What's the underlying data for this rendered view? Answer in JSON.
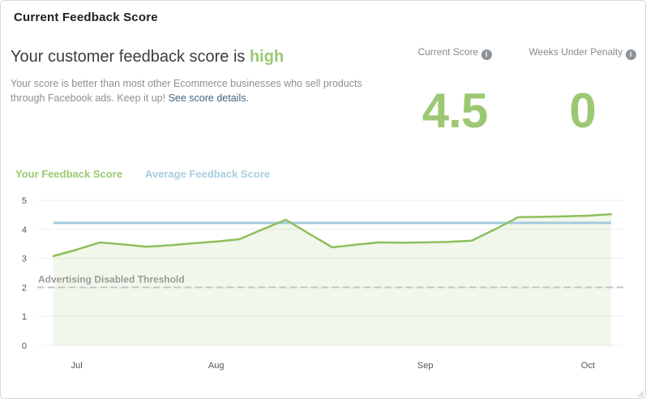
{
  "card": {
    "title": "Current Feedback Score",
    "heading": {
      "prefix": "Your customer feedback score is ",
      "level": "high"
    },
    "description": "Your score is better than most other Ecommerce businesses who sell products through Facebook ads. Keep it up!",
    "link_text": "See score details.",
    "stats": [
      {
        "label": "Current Score",
        "value": "4.5"
      },
      {
        "label": "Weeks Under Penalty",
        "value": "0"
      }
    ]
  },
  "icons": {
    "info": "i",
    "resize_grip": "◢"
  },
  "legend": [
    {
      "label": "Your Feedback Score",
      "color": "#9cc873"
    },
    {
      "label": "Average Feedback Score",
      "color": "#a9cede"
    }
  ],
  "colors": {
    "accent_green_text": "#9cc873",
    "line_green": "#8fbf5c",
    "area_green_fill": "rgba(143,191,92,0.13)",
    "line_blue": "#a5cbde",
    "threshold_gray": "#c4c4c4",
    "threshold_label_gray": "#9b9b9b",
    "grid_gray": "#ededed",
    "axis_text": "#555555",
    "link_blue": "#44647f"
  },
  "chart_data": {
    "type": "line",
    "title": "",
    "x_unit": "week",
    "ylim": [
      0,
      5
    ],
    "yticks": [
      0,
      1,
      2,
      3,
      4,
      5
    ],
    "grid": true,
    "legend_position": "top",
    "xticks": [
      {
        "index": 1,
        "label": "Jul"
      },
      {
        "index": 7,
        "label": "Aug"
      },
      {
        "index": 16,
        "label": "Sep"
      },
      {
        "index": 23,
        "label": "Oct"
      }
    ],
    "series": [
      {
        "name": "Your Feedback Score",
        "color": "#8fbf5c",
        "fill": "rgba(143,191,92,0.13)",
        "values": [
          3.08,
          3.3,
          3.55,
          3.48,
          3.4,
          3.45,
          3.52,
          3.58,
          3.66,
          4.0,
          4.33,
          3.85,
          3.38,
          3.47,
          3.55,
          3.54,
          3.55,
          3.57,
          3.61,
          4.0,
          4.42,
          4.43,
          4.45,
          4.47,
          4.52
        ]
      },
      {
        "name": "Average Feedback Score",
        "color": "#a5cbde",
        "flat_value": 4.22
      }
    ],
    "threshold": {
      "value": 2,
      "label": "Advertising Disabled Threshold",
      "color": "#c4c4c4",
      "label_color": "#9b9b9b"
    }
  }
}
